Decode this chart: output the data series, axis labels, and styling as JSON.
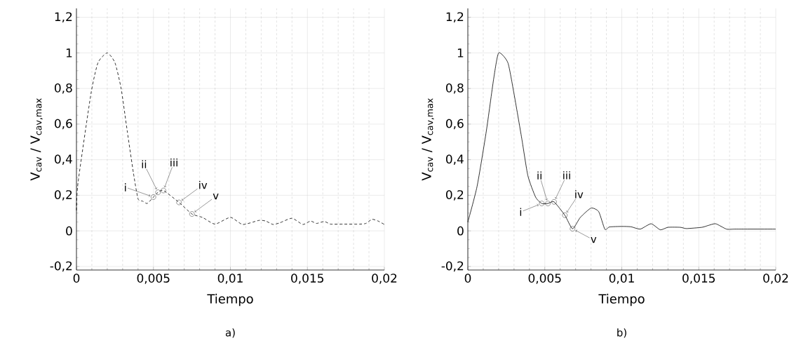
{
  "chart_data": [
    {
      "type": "line",
      "xlabel": "Tiempo",
      "ylabel": "V$_{cav}$ / V$_{cav,max}$",
      "xlim": [
        0,
        0.02
      ],
      "ylim": [
        -0.22,
        1.25
      ],
      "xticks": [
        0,
        {
          "value": 0.005,
          "label": "0,005"
        },
        {
          "value": 0.01,
          "label": "0,01"
        },
        {
          "value": 0.015,
          "label": "0,015"
        },
        {
          "value": 0.02,
          "label": "0,02"
        }
      ],
      "yticks": [
        {
          "value": -0.2,
          "label": "-0,2"
        },
        0,
        {
          "value": 0.2,
          "label": "0,2"
        },
        {
          "value": 0.4,
          "label": "0,4"
        },
        {
          "value": 0.6,
          "label": "0,6"
        },
        {
          "value": 0.8,
          "label": "0,8"
        },
        1,
        {
          "value": 1.2,
          "label": "1,2"
        }
      ],
      "grid": true,
      "series": [
        {
          "type": "line",
          "color": "#000000",
          "line_style": "dashed",
          "marker": "none",
          "x": [
            0,
            0.0001,
            0.00094,
            0.0014,
            0.002,
            0.0025,
            0.0029,
            0.0033,
            0.0037,
            0.004,
            0.0043,
            0.0046,
            0.005,
            0.0053,
            0.00565,
            0.00666,
            0.0075,
            0.0082,
            0.009,
            0.01,
            0.0108,
            0.01186,
            0.0123,
            0.01277,
            0.0132,
            0.014,
            0.0147,
            0.0152,
            0.0156,
            0.0161,
            0.0165,
            0.0173,
            0.0184,
            0.0188,
            0.0192,
            0.0196,
            0.02
          ],
          "values": [
            0.115,
            0.27,
            0.77,
            0.945,
            1.0,
            0.945,
            0.8,
            0.56,
            0.325,
            0.18,
            0.167,
            0.154,
            0.19,
            0.217,
            0.227,
            0.16,
            0.095,
            0.075,
            0.038,
            0.076,
            0.036,
            0.059,
            0.055,
            0.036,
            0.045,
            0.071,
            0.036,
            0.055,
            0.042,
            0.053,
            0.038,
            0.038,
            0.038,
            0.042,
            0.065,
            0.055,
            0.036
          ]
        },
        {
          "type": "scatter",
          "color": "#000000",
          "marker": "circle",
          "x": [
            0.005,
            0.0053,
            0.00565,
            0.00666,
            0.0075
          ],
          "values": [
            0.19,
            0.217,
            0.227,
            0.16,
            0.095
          ]
        }
      ],
      "annotations": [
        {
          "text": "i",
          "x": 0.005,
          "y": 0.19
        },
        {
          "text": "ii",
          "x": 0.0053,
          "y": 0.217
        },
        {
          "text": "iii",
          "x": 0.00565,
          "y": 0.227
        },
        {
          "text": "iv",
          "x": 0.00666,
          "y": 0.16
        },
        {
          "text": "v",
          "x": 0.0075,
          "y": 0.095
        },
        "a)"
      ]
    },
    {
      "type": "line",
      "xlabel": "Tiempo",
      "ylabel": "V$_{cav}$ / V$_{cav,max}$",
      "xlim": [
        0,
        0.02
      ],
      "ylim": [
        -0.22,
        1.25
      ],
      "xticks": [
        0,
        {
          "value": 0.005,
          "label": "0,005"
        },
        {
          "value": 0.01,
          "label": "0,01"
        },
        {
          "value": 0.015,
          "label": "0,015"
        },
        {
          "value": 0.02,
          "label": "0,02"
        }
      ],
      "yticks": [
        {
          "value": -0.2,
          "label": "-0,2"
        },
        0,
        {
          "value": 0.2,
          "label": "0,2"
        },
        {
          "value": 0.4,
          "label": "0,4"
        },
        {
          "value": 0.6,
          "label": "0,6"
        },
        {
          "value": 0.8,
          "label": "0,8"
        },
        1,
        {
          "value": 1.2,
          "label": "1,2"
        }
      ],
      "grid": true,
      "series": [
        {
          "type": "line",
          "color": "#000000",
          "line_style": "solid",
          "marker": "none",
          "x": [
            0,
            0.0006,
            0.0012,
            0.00167,
            0.002,
            0.0026,
            0.003,
            0.0035,
            0.0039,
            0.0044,
            0.0048,
            0.0052,
            0.0056,
            0.0063,
            0.0068,
            0.0073,
            0.008,
            0.0085,
            0.0089,
            0.0092,
            0.01,
            0.0106,
            0.0112,
            0.0119,
            0.0125,
            0.013,
            0.0138,
            0.0142,
            0.0152,
            0.0156,
            0.0161,
            0.0168,
            0.0174,
            0.02
          ],
          "values": [
            0.05,
            0.25,
            0.56,
            0.85,
            1.0,
            0.945,
            0.77,
            0.52,
            0.31,
            0.19,
            0.154,
            0.154,
            0.163,
            0.088,
            0.012,
            0.075,
            0.128,
            0.108,
            0.009,
            0.022,
            0.025,
            0.023,
            0.01,
            0.04,
            0.006,
            0.02,
            0.02,
            0.013,
            0.02,
            0.03,
            0.04,
            0.01,
            0.01,
            0.01
          ]
        },
        {
          "type": "scatter",
          "color": "#000000",
          "marker": "circle",
          "x": [
            0.0048,
            0.0052,
            0.0056,
            0.0063,
            0.0068
          ],
          "values": [
            0.154,
            0.154,
            0.163,
            0.088,
            0.012
          ]
        }
      ],
      "annotations": [
        {
          "text": "i",
          "x": 0.0048,
          "y": 0.154
        },
        {
          "text": "ii",
          "x": 0.0052,
          "y": 0.154
        },
        {
          "text": "iii",
          "x": 0.0056,
          "y": 0.163
        },
        {
          "text": "iv",
          "x": 0.0063,
          "y": 0.088
        },
        {
          "text": "v",
          "x": 0.0068,
          "y": 0.012
        },
        "b)"
      ]
    }
  ]
}
